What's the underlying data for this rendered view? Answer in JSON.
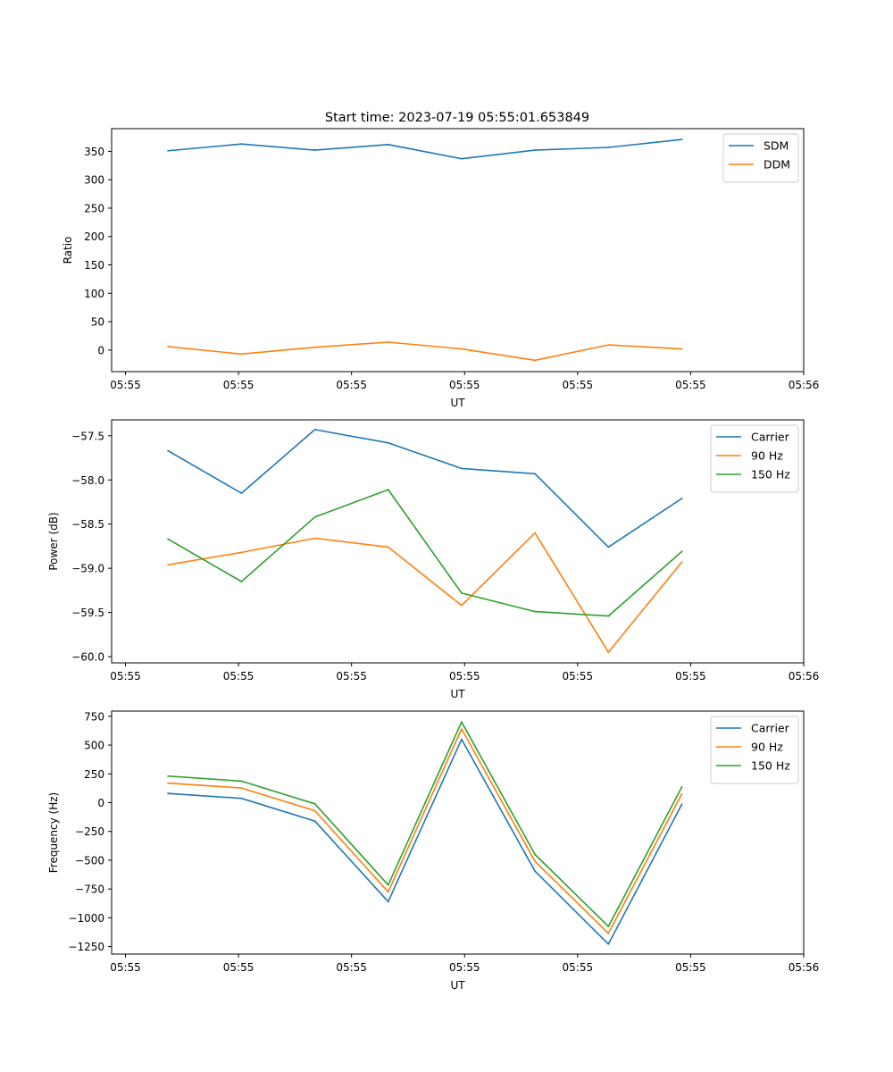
{
  "figure_title": "Start time: 2023-07-19 05:55:01.653849",
  "chart_data": [
    {
      "type": "line",
      "title": "Start time: 2023-07-19 05:55:01.653849",
      "xlabel": "UT",
      "ylabel": "Ratio",
      "x_ticks": [
        "05:55",
        "05:55",
        "05:55",
        "05:55",
        "05:55",
        "05:55",
        "05:56"
      ],
      "xlim": [
        -0.5,
        5.63
      ],
      "ylim": [
        -38,
        390
      ],
      "y_ticks": [
        0,
        50,
        100,
        150,
        200,
        250,
        300,
        350
      ],
      "y_tick_labels": [
        "0",
        "50",
        "100",
        "150",
        "200",
        "250",
        "300",
        "350"
      ],
      "x": [
        0,
        0.65,
        1.3,
        1.95,
        2.6,
        3.25,
        3.9,
        4.55
      ],
      "legend_position": "upper right",
      "series": [
        {
          "name": "SDM",
          "color": "#1f77b4",
          "values": [
            351,
            363,
            352,
            362,
            337,
            352,
            357,
            371
          ]
        },
        {
          "name": "DDM",
          "color": "#ff7f0e",
          "values": [
            6,
            -7,
            5,
            14,
            2,
            -18,
            9,
            2
          ]
        }
      ]
    },
    {
      "type": "line",
      "title": "",
      "xlabel": "UT",
      "ylabel": "Power (dB)",
      "x_ticks": [
        "05:55",
        "05:55",
        "05:55",
        "05:55",
        "05:55",
        "05:55",
        "05:56"
      ],
      "xlim": [
        -0.5,
        5.63
      ],
      "ylim": [
        -60.07,
        -57.32
      ],
      "y_ticks": [
        -60.0,
        -59.5,
        -59.0,
        -58.5,
        -58.0,
        -57.5
      ],
      "y_tick_labels": [
        "−60.0",
        "−59.5",
        "−59.0",
        "−58.5",
        "−58.0",
        "−57.5"
      ],
      "x": [
        0,
        0.65,
        1.3,
        1.95,
        2.6,
        3.25,
        3.9,
        4.55
      ],
      "legend_position": "upper right",
      "series": [
        {
          "name": "Carrier",
          "color": "#1f77b4",
          "values": [
            -57.67,
            -58.15,
            -57.43,
            -57.58,
            -57.87,
            -57.93,
            -58.76,
            -58.21
          ]
        },
        {
          "name": "90 Hz",
          "color": "#ff7f0e",
          "values": [
            -58.96,
            -58.82,
            -58.66,
            -58.76,
            -59.42,
            -58.6,
            -59.95,
            -58.93
          ]
        },
        {
          "name": "150 Hz",
          "color": "#2ca02c",
          "values": [
            -58.67,
            -59.15,
            -58.42,
            -58.11,
            -59.28,
            -59.49,
            -59.54,
            -58.81
          ]
        }
      ]
    },
    {
      "type": "line",
      "title": "",
      "xlabel": "UT",
      "ylabel": "Frequency (Hz)",
      "x_ticks": [
        "05:55",
        "05:55",
        "05:55",
        "05:55",
        "05:55",
        "05:55",
        "05:56"
      ],
      "xlim": [
        -0.5,
        5.63
      ],
      "ylim": [
        -1315,
        795
      ],
      "y_ticks": [
        -1250,
        -1000,
        -750,
        -500,
        -250,
        0,
        250,
        500,
        750
      ],
      "y_tick_labels": [
        "−1250",
        "−1000",
        "−750",
        "−500",
        "−250",
        "0",
        "250",
        "500",
        "750"
      ],
      "x": [
        0,
        0.65,
        1.3,
        1.95,
        2.6,
        3.25,
        3.9,
        4.55
      ],
      "legend_position": "upper right",
      "series": [
        {
          "name": "Carrier",
          "color": "#1f77b4",
          "values": [
            80,
            37,
            -160,
            -860,
            550,
            -595,
            -1228,
            -15
          ]
        },
        {
          "name": "90 Hz",
          "color": "#ff7f0e",
          "values": [
            170,
            127,
            -70,
            -775,
            640,
            -510,
            -1135,
            75
          ]
        },
        {
          "name": "150 Hz",
          "color": "#2ca02c",
          "values": [
            230,
            187,
            -10,
            -715,
            700,
            -450,
            -1075,
            135
          ]
        }
      ]
    }
  ]
}
